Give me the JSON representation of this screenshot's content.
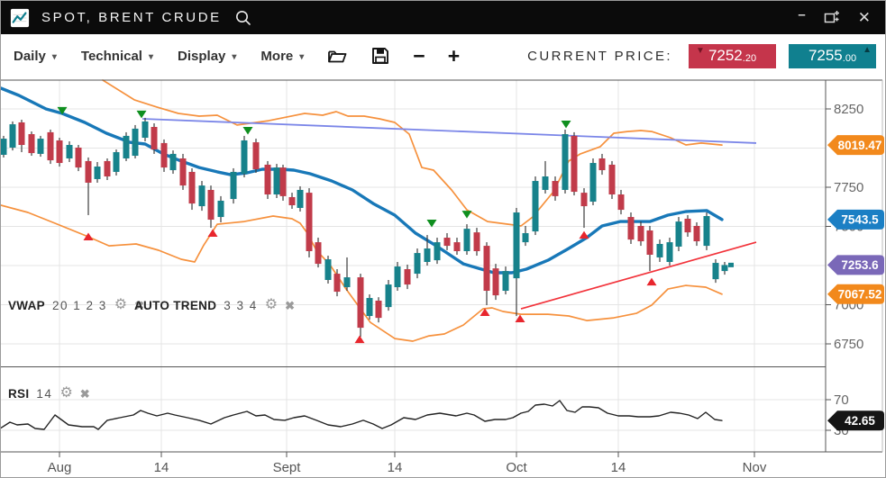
{
  "title_bar": {
    "title": "SPOT, BRENT CRUDE"
  },
  "icons": {
    "gear": "⚙",
    "close": "✖",
    "caret_down": "▾",
    "minus": "−",
    "plus": "+",
    "arrow_down": "▼",
    "arrow_up": "▲",
    "minimize": "–",
    "window_close": "✕"
  },
  "toolbar": {
    "menus": [
      "Daily",
      "Technical",
      "Display",
      "More"
    ],
    "current_price_label": "CURRENT PRICE:",
    "bid": {
      "main": "7252",
      "small": ".20"
    },
    "ask": {
      "main": "7255",
      "small": ".00"
    }
  },
  "indicators": {
    "vwap": {
      "name": "VWAP",
      "params": "20 1 2 3"
    },
    "auto_trend": {
      "name": "AUTO TREND",
      "params": "3 3 4"
    },
    "rsi": {
      "name": "RSI",
      "params": "14"
    }
  },
  "colors": {
    "bull": "#17828b",
    "bear": "#c13b4a",
    "wick": "#3c3c3c",
    "vwap": "#1878b8",
    "band": "#f6913d",
    "trend_down": "#7b86e8",
    "trend_up": "#f2333b",
    "grid": "#e4e4e4",
    "frame": "#555555",
    "tick_text": "#666666",
    "xtick_text": "#555555",
    "sell_marker": "#0f8f1f",
    "buy_marker": "#e8262d",
    "rsi_line": "#222222",
    "badge_text": "#ffffff"
  },
  "chart_data": {
    "type": "candlestick",
    "symbol": "SPOT, BRENT CRUDE",
    "y_grid": [
      8250,
      8000,
      7750,
      7500,
      7250,
      7000,
      6750
    ],
    "y_ticks": [
      8250,
      7750,
      7500,
      7000,
      6750
    ],
    "x_ticks": [
      {
        "label": "Aug",
        "x": 65
      },
      {
        "label": "14",
        "x": 178
      },
      {
        "label": "Sept",
        "x": 317
      },
      {
        "label": "14",
        "x": 437
      },
      {
        "label": "Oct",
        "x": 572
      },
      {
        "label": "14",
        "x": 685
      },
      {
        "label": "Nov",
        "x": 836
      }
    ],
    "candles": [
      [
        3,
        7957,
        8078,
        7940,
        8060
      ],
      [
        13,
        8003,
        8170,
        7985,
        8152
      ],
      [
        23,
        8164,
        8181,
        7974,
        8020
      ],
      [
        34,
        8089,
        8106,
        7951,
        7968
      ],
      [
        44,
        7963,
        8078,
        7945,
        8060
      ],
      [
        55,
        8101,
        8118,
        7899,
        7922
      ],
      [
        65,
        8049,
        8066,
        7882,
        7905
      ],
      [
        76,
        7934,
        8043,
        7911,
        8020
      ],
      [
        86,
        8003,
        8020,
        7853,
        7876
      ],
      [
        97,
        7917,
        7940,
        7572,
        7779
      ],
      [
        107,
        7802,
        7911,
        7779,
        7882
      ],
      [
        118,
        7917,
        7934,
        7796,
        7819
      ],
      [
        128,
        7848,
        7991,
        7825,
        7974
      ],
      [
        139,
        7934,
        8101,
        7917,
        8078
      ],
      [
        149,
        7951,
        8147,
        7934,
        8124
      ],
      [
        160,
        8066,
        8193,
        8043,
        8170
      ],
      [
        170,
        8135,
        8158,
        7963,
        7991
      ],
      [
        181,
        8032,
        8055,
        7848,
        7876
      ],
      [
        191,
        7859,
        7985,
        7836,
        7963
      ],
      [
        202,
        7934,
        7963,
        7733,
        7761
      ],
      [
        212,
        7848,
        7871,
        7606,
        7646
      ],
      [
        223,
        7629,
        7790,
        7600,
        7761
      ],
      [
        233,
        7733,
        7761,
        7491,
        7543
      ],
      [
        244,
        7560,
        7693,
        7526,
        7664
      ],
      [
        258,
        7675,
        7871,
        7646,
        7848
      ],
      [
        270,
        7836,
        8078,
        7813,
        8049
      ],
      [
        283,
        8037,
        8060,
        7842,
        7865
      ],
      [
        296,
        7894,
        7917,
        7675,
        7704
      ],
      [
        306,
        7704,
        7899,
        7681,
        7876
      ],
      [
        313,
        7876,
        7894,
        7664,
        7693
      ],
      [
        323,
        7687,
        7715,
        7612,
        7635
      ],
      [
        332,
        7618,
        7756,
        7595,
        7733
      ],
      [
        342,
        7715,
        7744,
        7302,
        7342
      ],
      [
        352,
        7399,
        7428,
        7238,
        7261
      ],
      [
        363,
        7158,
        7313,
        7135,
        7290
      ],
      [
        373,
        7198,
        7227,
        7054,
        7083
      ],
      [
        384,
        7112,
        7302,
        7089,
        7175
      ],
      [
        399,
        7175,
        7198,
        6795,
        6853
      ],
      [
        409,
        6928,
        7066,
        6905,
        7043
      ],
      [
        419,
        7026,
        7048,
        6887,
        6916
      ],
      [
        430,
        6985,
        7158,
        6962,
        7129
      ],
      [
        440,
        7112,
        7273,
        7089,
        7244
      ],
      [
        451,
        7227,
        7256,
        7100,
        7129
      ],
      [
        462,
        7198,
        7359,
        7169,
        7330
      ],
      [
        473,
        7273,
        7445,
        7250,
        7359
      ],
      [
        484,
        7284,
        7428,
        7261,
        7399
      ],
      [
        495,
        7428,
        7457,
        7348,
        7376
      ],
      [
        506,
        7399,
        7428,
        7319,
        7342
      ],
      [
        517,
        7342,
        7514,
        7319,
        7485
      ],
      [
        528,
        7462,
        7491,
        7313,
        7342
      ],
      [
        539,
        7376,
        7399,
        6997,
        7089
      ],
      [
        549,
        7232,
        7261,
        7031,
        7060
      ],
      [
        560,
        7089,
        7244,
        7066,
        7215
      ],
      [
        572,
        7169,
        7618,
        6928,
        7589
      ],
      [
        582,
        7399,
        7503,
        7376,
        7457
      ],
      [
        593,
        7468,
        7819,
        7445,
        7790
      ],
      [
        604,
        7733,
        7917,
        7710,
        7819
      ],
      [
        615,
        7790,
        7819,
        7664,
        7693
      ],
      [
        626,
        7733,
        8118,
        7710,
        8089
      ],
      [
        636,
        8078,
        8101,
        7698,
        7721
      ],
      [
        647,
        7715,
        7744,
        7491,
        7629
      ],
      [
        657,
        7658,
        7934,
        7635,
        7905
      ],
      [
        667,
        7934,
        7963,
        7830,
        7859
      ],
      [
        678,
        7894,
        7917,
        7675,
        7704
      ],
      [
        688,
        7704,
        7733,
        7577,
        7606
      ],
      [
        699,
        7560,
        7589,
        7388,
        7416
      ],
      [
        710,
        7503,
        7531,
        7376,
        7405
      ],
      [
        720,
        7474,
        7503,
        7215,
        7319
      ],
      [
        731,
        7302,
        7416,
        7273,
        7388
      ],
      [
        742,
        7273,
        7428,
        7250,
        7399
      ],
      [
        752,
        7371,
        7560,
        7342,
        7531
      ],
      [
        762,
        7549,
        7572,
        7434,
        7462
      ],
      [
        772,
        7503,
        7526,
        7376,
        7405
      ],
      [
        783,
        7376,
        7589,
        7348,
        7566
      ],
      [
        793,
        7163,
        7290,
        7140,
        7267
      ],
      [
        803,
        7215,
        7273,
        7192,
        7253.6
      ]
    ],
    "vwap": [
      [
        0,
        8382
      ],
      [
        20,
        8336
      ],
      [
        50,
        8250
      ],
      [
        68,
        8221
      ],
      [
        93,
        8164
      ],
      [
        117,
        8095
      ],
      [
        143,
        8037
      ],
      [
        160,
        8026
      ],
      [
        180,
        7963
      ],
      [
        200,
        7917
      ],
      [
        220,
        7876
      ],
      [
        240,
        7848
      ],
      [
        255,
        7830
      ],
      [
        273,
        7842
      ],
      [
        290,
        7865
      ],
      [
        310,
        7865
      ],
      [
        325,
        7859
      ],
      [
        343,
        7836
      ],
      [
        367,
        7790
      ],
      [
        390,
        7733
      ],
      [
        413,
        7646
      ],
      [
        437,
        7572
      ],
      [
        460,
        7457
      ],
      [
        483,
        7376
      ],
      [
        513,
        7261
      ],
      [
        530,
        7232
      ],
      [
        547,
        7204
      ],
      [
        567,
        7204
      ],
      [
        583,
        7227
      ],
      [
        607,
        7284
      ],
      [
        630,
        7359
      ],
      [
        650,
        7428
      ],
      [
        667,
        7503
      ],
      [
        687,
        7531
      ],
      [
        720,
        7531
      ],
      [
        740,
        7572
      ],
      [
        760,
        7595
      ],
      [
        783,
        7601
      ],
      [
        800,
        7543.5
      ]
    ],
    "bb_upper": [
      [
        113,
        8434
      ],
      [
        148,
        8308
      ],
      [
        173,
        8262
      ],
      [
        197,
        8221
      ],
      [
        220,
        8204
      ],
      [
        240,
        8210
      ],
      [
        262,
        8147
      ],
      [
        297,
        8175
      ],
      [
        337,
        8221
      ],
      [
        357,
        8210
      ],
      [
        372,
        8233
      ],
      [
        385,
        8204
      ],
      [
        403,
        8204
      ],
      [
        420,
        8187
      ],
      [
        437,
        8164
      ],
      [
        453,
        8089
      ],
      [
        467,
        7876
      ],
      [
        480,
        7859
      ],
      [
        500,
        7733
      ],
      [
        517,
        7606
      ],
      [
        540,
        7531
      ],
      [
        563,
        7514
      ],
      [
        577,
        7503
      ],
      [
        590,
        7560
      ],
      [
        613,
        7721
      ],
      [
        630,
        7917
      ],
      [
        643,
        7963
      ],
      [
        665,
        8009
      ],
      [
        680,
        8095
      ],
      [
        695,
        8106
      ],
      [
        710,
        8112
      ],
      [
        722,
        8106
      ],
      [
        743,
        8066
      ],
      [
        760,
        8020
      ],
      [
        777,
        8032
      ],
      [
        800,
        8019.47
      ]
    ],
    "bb_lower": [
      [
        0,
        7635
      ],
      [
        30,
        7589
      ],
      [
        60,
        7520
      ],
      [
        97,
        7434
      ],
      [
        120,
        7376
      ],
      [
        150,
        7388
      ],
      [
        175,
        7348
      ],
      [
        200,
        7290
      ],
      [
        215,
        7273
      ],
      [
        225,
        7380
      ],
      [
        240,
        7514
      ],
      [
        270,
        7531
      ],
      [
        302,
        7566
      ],
      [
        323,
        7549
      ],
      [
        332,
        7520
      ],
      [
        340,
        7457
      ],
      [
        350,
        7348
      ],
      [
        365,
        7256
      ],
      [
        383,
        7100
      ],
      [
        410,
        6887
      ],
      [
        437,
        6784
      ],
      [
        457,
        6767
      ],
      [
        475,
        6801
      ],
      [
        492,
        6813
      ],
      [
        513,
        6870
      ],
      [
        535,
        6974
      ],
      [
        545,
        6980
      ],
      [
        557,
        6957
      ],
      [
        577,
        6939
      ],
      [
        607,
        6939
      ],
      [
        630,
        6928
      ],
      [
        650,
        6899
      ],
      [
        680,
        6916
      ],
      [
        705,
        6945
      ],
      [
        722,
        6997
      ],
      [
        740,
        7100
      ],
      [
        760,
        7123
      ],
      [
        782,
        7112
      ],
      [
        800,
        7067.52
      ]
    ],
    "trend_down": {
      "x1": 157,
      "p1": 8187,
      "x2": 838,
      "p2": 8032
    },
    "trend_up": {
      "x1": 577,
      "p1": 6974,
      "x2": 838,
      "p2": 7399
    },
    "sell_markers": [
      [
        68,
        8239
      ],
      [
        156,
        8216
      ],
      [
        274,
        8112
      ],
      [
        478,
        7520
      ],
      [
        517,
        7577
      ],
      [
        627,
        8152
      ]
    ],
    "buy_markers": [
      [
        97,
        7434
      ],
      [
        235,
        7457
      ],
      [
        398,
        6778
      ],
      [
        537,
        6951
      ],
      [
        576,
        6911
      ],
      [
        647,
        7445
      ],
      [
        722,
        7146
      ]
    ],
    "last_tick": {
      "x": 810,
      "price": 7253.6
    },
    "price_badges": [
      {
        "text": "8019.47",
        "value": 8019.47,
        "color": "#f2891c"
      },
      {
        "text": "7543.5",
        "value": 7543.5,
        "color": "#1b7fc4"
      },
      {
        "text": "7253.6",
        "value": 7253.6,
        "color": "#7a68b8"
      },
      {
        "text": "7067.52",
        "value": 7067.52,
        "color": "#f2891c"
      }
    ],
    "rsi": {
      "ticks": [
        70,
        30
      ],
      "badge": {
        "text": "42.65",
        "value": 42.65,
        "color": "#151515"
      },
      "points": [
        [
          0,
          33
        ],
        [
          10,
          40.6
        ],
        [
          18,
          37.1
        ],
        [
          30,
          38.2
        ],
        [
          38,
          32.4
        ],
        [
          48,
          31.2
        ],
        [
          60,
          50
        ],
        [
          75,
          37.1
        ],
        [
          90,
          34.7
        ],
        [
          103,
          34.7
        ],
        [
          108,
          31.2
        ],
        [
          118,
          43
        ],
        [
          132,
          46.5
        ],
        [
          147,
          50
        ],
        [
          155,
          55.9
        ],
        [
          163,
          52.4
        ],
        [
          173,
          48.8
        ],
        [
          185,
          52.4
        ],
        [
          193,
          50
        ],
        [
          207,
          46.5
        ],
        [
          220,
          43
        ],
        [
          233,
          38.2
        ],
        [
          248,
          46.5
        ],
        [
          258,
          50
        ],
        [
          273,
          54.7
        ],
        [
          283,
          48.8
        ],
        [
          293,
          50
        ],
        [
          303,
          44.1
        ],
        [
          315,
          43
        ],
        [
          325,
          46.5
        ],
        [
          337,
          48.8
        ],
        [
          350,
          43
        ],
        [
          363,
          37.1
        ],
        [
          377,
          34.7
        ],
        [
          390,
          38.2
        ],
        [
          402,
          43
        ],
        [
          413,
          38.2
        ],
        [
          423,
          32.4
        ],
        [
          433,
          37.1
        ],
        [
          447,
          46.5
        ],
        [
          460,
          44.1
        ],
        [
          473,
          50
        ],
        [
          487,
          52.4
        ],
        [
          505,
          48.8
        ],
        [
          517,
          52.4
        ],
        [
          525,
          50
        ],
        [
          537,
          41.8
        ],
        [
          548,
          44.1
        ],
        [
          560,
          44.1
        ],
        [
          568,
          46.5
        ],
        [
          577,
          52.4
        ],
        [
          585,
          54.7
        ],
        [
          593,
          62.9
        ],
        [
          603,
          64.1
        ],
        [
          612,
          61.8
        ],
        [
          620,
          68.8
        ],
        [
          628,
          55.9
        ],
        [
          637,
          53.5
        ],
        [
          645,
          60.6
        ],
        [
          653,
          60.6
        ],
        [
          663,
          59.4
        ],
        [
          673,
          52.4
        ],
        [
          685,
          48.8
        ],
        [
          697,
          48.8
        ],
        [
          707,
          47.6
        ],
        [
          720,
          47.6
        ],
        [
          730,
          48.8
        ],
        [
          743,
          53.5
        ],
        [
          753,
          52.4
        ],
        [
          763,
          50
        ],
        [
          773,
          45.3
        ],
        [
          782,
          53.5
        ],
        [
          792,
          44.1
        ],
        [
          800,
          42.65
        ]
      ]
    }
  }
}
